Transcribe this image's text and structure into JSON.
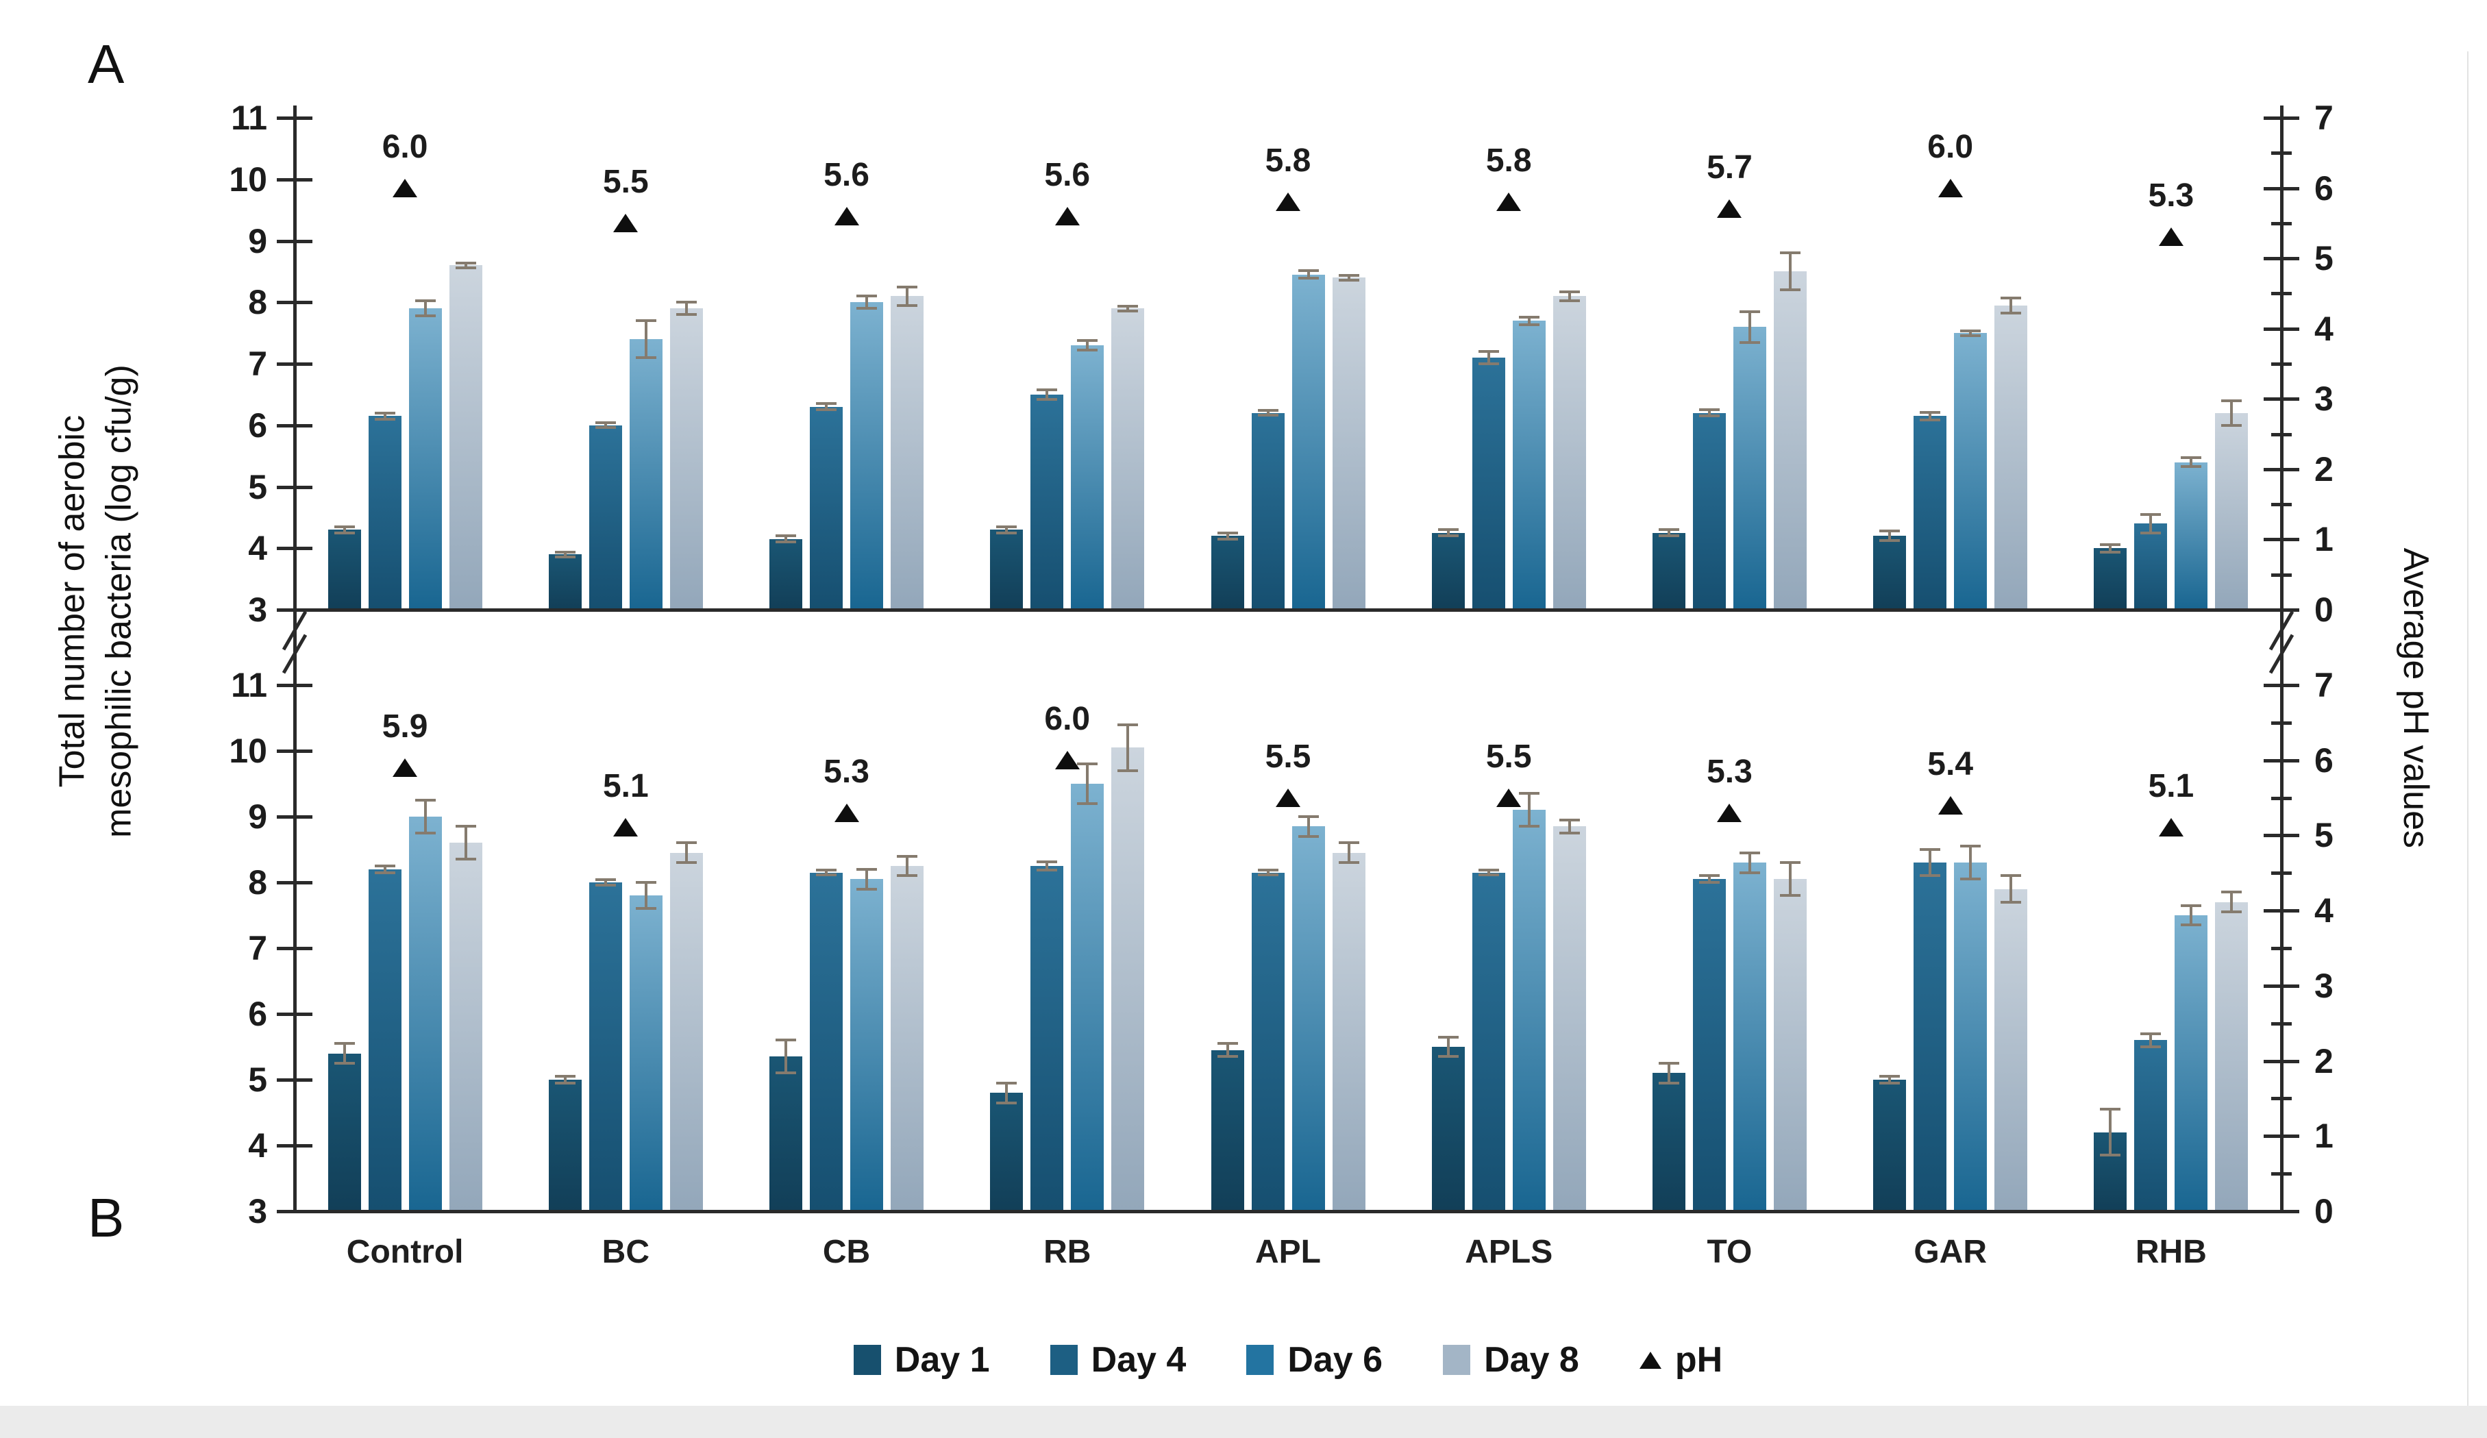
{
  "figure": {
    "panel_a_label": "A",
    "panel_b_label": "B",
    "left_axis_title_line1": "Total number of aerobic",
    "left_axis_title_line2": "mesophilic bacteria (log cfu/g)",
    "right_axis_title": "Average pH values"
  },
  "colors": {
    "axis": "#2a2a2a",
    "text": "#1c1c1c",
    "error_bar": "#857b6e",
    "ph_marker": "#0e0e0e",
    "day1_top": "#1a5674",
    "day1_bottom": "#123f58",
    "day4_top": "#2c7299",
    "day4_bottom": "#164f70",
    "day6_top": "#7db2d0",
    "day6_bottom": "#196691",
    "day8_top": "#ccd5de",
    "day8_bottom": "#93a7ba",
    "legend_day1": "#17506e",
    "legend_day4": "#1d5f83",
    "legend_day6": "#2374a1",
    "legend_day8": "#a3b5c6"
  },
  "chart_data": {
    "type": "bar",
    "title": "",
    "categories": [
      "Control",
      "BC",
      "CB",
      "RB",
      "APL",
      "APLS",
      "TO",
      "GAR",
      "RHB"
    ],
    "left_axis": {
      "label": "Total number of aerobic mesophilic bacteria (log cfu/g)",
      "min": 3,
      "max": 11,
      "major_step": 1,
      "tick_labels": [
        11,
        10,
        9,
        8,
        7,
        6,
        5,
        4,
        3
      ]
    },
    "right_axis": {
      "label": "Average pH values",
      "min": 0,
      "max": 7,
      "major_step": 1,
      "minor_step": 0.5,
      "tick_labels": [
        7,
        6,
        5,
        4,
        3,
        2,
        1,
        0
      ]
    },
    "axis_break": true,
    "grid": false,
    "legend_position": "bottom",
    "legend": [
      {
        "label": "Day 1",
        "marker": "square"
      },
      {
        "label": "Day 4",
        "marker": "square"
      },
      {
        "label": "Day 6",
        "marker": "square"
      },
      {
        "label": "Day 8",
        "marker": "square"
      },
      {
        "label": "pH",
        "marker": "triangle"
      }
    ],
    "panels": [
      {
        "id": "A",
        "series": [
          {
            "name": "Day 1",
            "values": [
              4.3,
              3.9,
              4.15,
              4.3,
              4.2,
              4.25,
              4.25,
              4.2,
              4.0
            ],
            "errors": [
              0.05,
              0.04,
              0.05,
              0.05,
              0.05,
              0.05,
              0.05,
              0.08,
              0.06
            ]
          },
          {
            "name": "Day 4",
            "values": [
              6.15,
              6.0,
              6.3,
              6.5,
              6.2,
              7.1,
              6.2,
              6.15,
              4.4
            ],
            "errors": [
              0.05,
              0.04,
              0.05,
              0.08,
              0.04,
              0.1,
              0.05,
              0.06,
              0.15
            ]
          },
          {
            "name": "Day 6",
            "values": [
              7.9,
              7.4,
              8.0,
              7.3,
              8.45,
              7.7,
              7.6,
              7.5,
              5.4
            ],
            "errors": [
              0.12,
              0.3,
              0.1,
              0.08,
              0.06,
              0.06,
              0.25,
              0.04,
              0.07
            ]
          },
          {
            "name": "Day 8",
            "values": [
              8.6,
              7.9,
              8.1,
              7.9,
              8.4,
              8.1,
              8.5,
              7.95,
              6.2
            ],
            "errors": [
              0.04,
              0.1,
              0.15,
              0.04,
              0.04,
              0.07,
              0.3,
              0.12,
              0.2
            ]
          }
        ],
        "ph_values": [
          6.0,
          5.5,
          5.6,
          5.6,
          5.8,
          5.8,
          5.7,
          6.0,
          5.3
        ]
      },
      {
        "id": "B",
        "series": [
          {
            "name": "Day 1",
            "values": [
              5.4,
              5.0,
              5.35,
              4.8,
              5.45,
              5.5,
              5.1,
              5.0,
              4.2
            ],
            "errors": [
              0.15,
              0.05,
              0.25,
              0.15,
              0.1,
              0.15,
              0.15,
              0.05,
              0.35
            ]
          },
          {
            "name": "Day 4",
            "values": [
              8.2,
              8.0,
              8.15,
              8.25,
              8.15,
              8.15,
              8.05,
              8.3,
              5.6
            ],
            "errors": [
              0.05,
              0.04,
              0.04,
              0.06,
              0.04,
              0.04,
              0.05,
              0.2,
              0.1
            ]
          },
          {
            "name": "Day 6",
            "values": [
              9.0,
              7.8,
              8.05,
              9.5,
              8.85,
              9.1,
              8.3,
              8.3,
              7.5
            ],
            "errors": [
              0.25,
              0.2,
              0.15,
              0.3,
              0.15,
              0.25,
              0.15,
              0.25,
              0.15
            ]
          },
          {
            "name": "Day 8",
            "values": [
              8.6,
              8.45,
              8.25,
              10.05,
              8.45,
              8.85,
              8.05,
              7.9,
              7.7
            ],
            "errors": [
              0.25,
              0.15,
              0.15,
              0.35,
              0.15,
              0.1,
              0.25,
              0.2,
              0.15
            ]
          }
        ],
        "ph_values": [
          5.9,
          5.1,
          5.3,
          6.0,
          5.5,
          5.5,
          5.3,
          5.4,
          5.1
        ]
      }
    ]
  }
}
